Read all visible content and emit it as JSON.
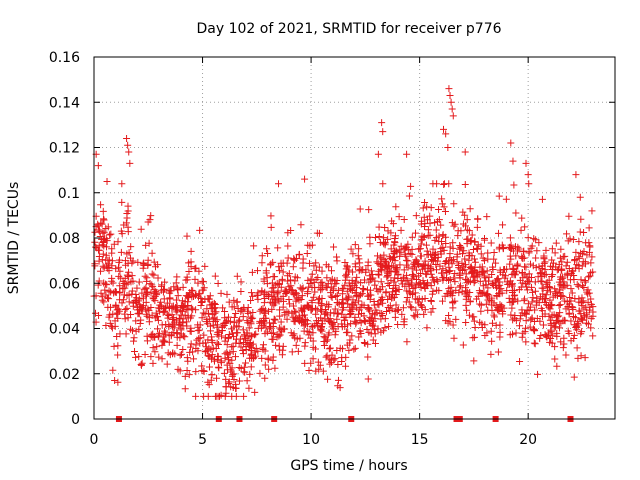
{
  "chart_data": {
    "type": "scatter",
    "title": "Day 102 of 2021, SRMTID for receiver p776",
    "xlabel": "GPS time / hours",
    "ylabel": "SRMTID / TECUs",
    "xlim": [
      0,
      24
    ],
    "ylim": [
      0,
      0.16
    ],
    "xticks": [
      0,
      5,
      10,
      15,
      20
    ],
    "yticks": [
      0,
      0.02,
      0.04,
      0.06,
      0.08,
      0.1,
      0.12,
      0.14,
      0.16
    ],
    "ytick_labels": [
      "0",
      "0.02",
      "0.04",
      "0.06",
      "0.08",
      "0.1",
      "0.12",
      "0.14",
      "0.16"
    ],
    "grid": true,
    "marker": "plus",
    "color": "#e41a1c",
    "n_points": 2400,
    "baseline_markers_x": [
      1.15,
      5.75,
      6.7,
      8.3,
      11.85,
      16.7,
      16.85,
      18.5,
      21.95
    ],
    "trend_knots": [
      [
        0,
        0.062
      ],
      [
        0.3,
        0.075
      ],
      [
        0.6,
        0.062
      ],
      [
        1.0,
        0.048
      ],
      [
        1.5,
        0.068
      ],
      [
        2.0,
        0.045
      ],
      [
        2.5,
        0.052
      ],
      [
        3.0,
        0.046
      ],
      [
        3.5,
        0.043
      ],
      [
        4.0,
        0.042
      ],
      [
        4.5,
        0.05
      ],
      [
        5.0,
        0.041
      ],
      [
        5.5,
        0.036
      ],
      [
        6.0,
        0.03
      ],
      [
        6.5,
        0.034
      ],
      [
        7.0,
        0.036
      ],
      [
        7.5,
        0.042
      ],
      [
        8.0,
        0.045
      ],
      [
        8.5,
        0.05
      ],
      [
        9.0,
        0.052
      ],
      [
        9.5,
        0.05
      ],
      [
        10.0,
        0.048
      ],
      [
        10.5,
        0.046
      ],
      [
        11.0,
        0.044
      ],
      [
        11.5,
        0.048
      ],
      [
        12.0,
        0.052
      ],
      [
        12.5,
        0.046
      ],
      [
        13.0,
        0.055
      ],
      [
        13.5,
        0.062
      ],
      [
        14.0,
        0.064
      ],
      [
        14.5,
        0.066
      ],
      [
        15.0,
        0.062
      ],
      [
        15.5,
        0.07
      ],
      [
        16.0,
        0.075
      ],
      [
        16.5,
        0.06
      ],
      [
        17.0,
        0.068
      ],
      [
        17.5,
        0.062
      ],
      [
        18.0,
        0.06
      ],
      [
        18.5,
        0.058
      ],
      [
        19.0,
        0.06
      ],
      [
        19.5,
        0.058
      ],
      [
        20.0,
        0.056
      ],
      [
        20.5,
        0.052
      ],
      [
        21.0,
        0.054
      ],
      [
        21.5,
        0.055
      ],
      [
        22.0,
        0.054
      ],
      [
        22.5,
        0.056
      ],
      [
        23.0,
        0.057
      ]
    ],
    "spikes": [
      {
        "x": 0.1,
        "y": 0.117
      },
      {
        "x": 0.2,
        "y": 0.112
      },
      {
        "x": 0.6,
        "y": 0.105
      },
      {
        "x": 1.5,
        "y": 0.124
      },
      {
        "x": 1.55,
        "y": 0.121
      },
      {
        "x": 1.6,
        "y": 0.118
      },
      {
        "x": 1.65,
        "y": 0.113
      },
      {
        "x": 8.5,
        "y": 0.104
      },
      {
        "x": 9.7,
        "y": 0.106
      },
      {
        "x": 13.25,
        "y": 0.131
      },
      {
        "x": 13.3,
        "y": 0.127
      },
      {
        "x": 13.1,
        "y": 0.117
      },
      {
        "x": 14.4,
        "y": 0.117
      },
      {
        "x": 16.1,
        "y": 0.128
      },
      {
        "x": 16.2,
        "y": 0.126
      },
      {
        "x": 16.35,
        "y": 0.146
      },
      {
        "x": 16.4,
        "y": 0.143
      },
      {
        "x": 16.45,
        "y": 0.14
      },
      {
        "x": 16.5,
        "y": 0.137
      },
      {
        "x": 16.55,
        "y": 0.134
      },
      {
        "x": 16.3,
        "y": 0.12
      },
      {
        "x": 17.1,
        "y": 0.118
      },
      {
        "x": 19.2,
        "y": 0.122
      },
      {
        "x": 19.3,
        "y": 0.114
      },
      {
        "x": 19.9,
        "y": 0.113
      },
      {
        "x": 20.0,
        "y": 0.108
      },
      {
        "x": 22.2,
        "y": 0.108
      },
      {
        "x": 22.4,
        "y": 0.098
      }
    ]
  }
}
